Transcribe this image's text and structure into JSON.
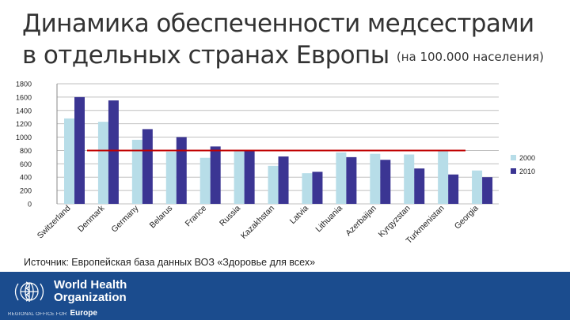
{
  "slide": {
    "title_line1": "Динамика обеспеченности медсестрами",
    "title_line2": "в отдельных странах Европы",
    "title_note": "(на 100.000 населения)",
    "source": "Источник: Европейская база данных ВОЗ «Здоровье для всех»"
  },
  "footer": {
    "org_line1": "World Health",
    "org_line2": "Organization",
    "office_label": "REGIONAL OFFICE FOR",
    "region": "Europe",
    "logo_icon": "who-emblem-icon"
  },
  "chart_data": {
    "type": "bar",
    "categories": [
      "Switzerland",
      "Denmark",
      "Germany",
      "Belarus",
      "France",
      "Russia",
      "Kazakhstan",
      "Latvia",
      "Lithuania",
      "Azerbaijan",
      "Kyrgyzstan",
      "Turkmenistan",
      "Georgia"
    ],
    "series": [
      {
        "name": "2000",
        "color": "#b7dde8",
        "values": [
          1280,
          1230,
          960,
          780,
          690,
          800,
          570,
          460,
          770,
          750,
          740,
          790,
          500
        ]
      },
      {
        "name": "2010",
        "color": "#3b3593",
        "values": [
          1600,
          1550,
          1120,
          1000,
          860,
          810,
          710,
          480,
          700,
          660,
          530,
          440,
          400
        ]
      }
    ],
    "reference_line": {
      "value": 800,
      "color": "#c00000"
    },
    "yticks": [
      0,
      200,
      400,
      600,
      800,
      1000,
      1200,
      1400,
      1600,
      1800
    ],
    "ylim": [
      0,
      1800
    ],
    "grid": true,
    "legend_position": "right"
  }
}
